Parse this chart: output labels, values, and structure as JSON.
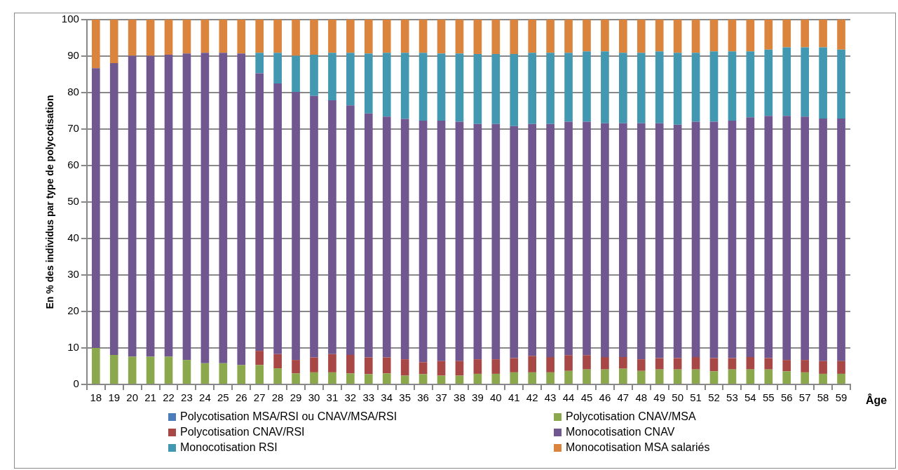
{
  "chart_data": {
    "type": "bar",
    "stacked": true,
    "xlabel": "Âge",
    "ylabel": "En % des individus par type de polycotisation",
    "categories": [
      "18",
      "19",
      "20",
      "21",
      "22",
      "23",
      "24",
      "25",
      "26",
      "27",
      "28",
      "29",
      "30",
      "31",
      "32",
      "33",
      "34",
      "35",
      "36",
      "37",
      "38",
      "39",
      "40",
      "41",
      "42",
      "43",
      "44",
      "45",
      "46",
      "47",
      "48",
      "49",
      "50",
      "51",
      "52",
      "53",
      "54",
      "55",
      "56",
      "57",
      "58",
      "59"
    ],
    "series": [
      {
        "name": "Polycotisation MSA/RSI ou CNAV/MSA/RSI",
        "color": "#4a7ebb",
        "values": [
          0,
          0,
          0,
          0,
          0,
          0,
          0,
          0,
          0,
          0,
          0,
          0,
          0,
          0,
          0,
          0,
          0,
          0,
          0,
          0,
          0,
          0,
          0,
          0,
          0,
          0,
          0,
          0,
          0,
          0,
          0,
          0,
          0,
          0,
          0,
          0,
          0,
          0,
          0,
          0,
          0,
          0
        ]
      },
      {
        "name": "Polycotisation CNAV/MSA",
        "color": "#8ca84c",
        "values": [
          10.0,
          8.1,
          7.6,
          7.6,
          7.6,
          6.7,
          5.8,
          5.8,
          5.3,
          5.3,
          4.4,
          3.0,
          3.3,
          3.3,
          3.0,
          2.8,
          3.0,
          2.4,
          2.8,
          2.4,
          2.4,
          2.9,
          2.9,
          3.3,
          3.3,
          3.3,
          3.7,
          4.1,
          4.1,
          4.3,
          3.7,
          4.1,
          4.1,
          4.1,
          3.6,
          4.1,
          4.1,
          4.1,
          3.6,
          3.3,
          2.9,
          2.9
        ]
      },
      {
        "name": "Polycotisation CNAV/RSI",
        "color": "#a84846",
        "values": [
          0,
          0,
          0,
          0,
          0,
          0,
          0,
          0,
          0,
          3.9,
          3.9,
          3.7,
          4.1,
          5.0,
          5.1,
          4.6,
          4.4,
          4.5,
          3.3,
          4.0,
          4.0,
          4.0,
          4.0,
          3.9,
          4.5,
          4.2,
          4.3,
          3.9,
          3.4,
          3.2,
          3.2,
          3.1,
          3.1,
          3.4,
          3.6,
          3.1,
          3.4,
          3.1,
          3.1,
          3.4,
          3.5,
          3.5
        ]
      },
      {
        "name": "Monocotisation CNAV",
        "color": "#70578f",
        "values": [
          76.7,
          80.0,
          82.5,
          82.5,
          82.8,
          84.0,
          85.1,
          85.1,
          85.4,
          76.1,
          74.2,
          73.5,
          71.7,
          69.6,
          68.4,
          66.9,
          66.0,
          65.9,
          66.2,
          65.9,
          65.6,
          64.5,
          64.5,
          63.6,
          63.6,
          63.9,
          64.0,
          64.0,
          64.1,
          64.1,
          64.7,
          64.4,
          64.0,
          64.5,
          64.8,
          65.1,
          65.7,
          66.4,
          66.9,
          66.7,
          66.5,
          66.5
        ]
      },
      {
        "name": "Monocotisation RSI",
        "color": "#4298b0",
        "values": [
          0,
          0,
          0,
          0,
          0,
          0,
          0,
          0,
          0,
          5.6,
          8.4,
          9.9,
          11.3,
          13.0,
          14.4,
          16.4,
          17.5,
          18.1,
          18.6,
          18.4,
          18.7,
          19.2,
          19.2,
          19.8,
          19.5,
          19.5,
          18.9,
          19.3,
          19.7,
          19.3,
          19.3,
          19.7,
          19.7,
          18.9,
          19.3,
          19.0,
          18.1,
          18.2,
          18.8,
          19.0,
          19.5,
          18.9
        ]
      },
      {
        "name": "Monocotisation MSA salariés",
        "color": "#db843d",
        "values": [
          13.3,
          11.9,
          9.9,
          9.9,
          9.6,
          9.3,
          9.1,
          9.1,
          9.3,
          9.1,
          9.1,
          9.9,
          9.6,
          9.1,
          9.1,
          9.3,
          9.1,
          9.1,
          9.1,
          9.3,
          9.3,
          9.4,
          9.4,
          9.4,
          9.1,
          9.1,
          9.1,
          8.7,
          8.7,
          9.1,
          9.1,
          8.7,
          9.1,
          9.1,
          8.7,
          8.7,
          8.7,
          8.2,
          7.6,
          7.6,
          7.6,
          8.2
        ]
      }
    ],
    "ylim": [
      0,
      100
    ],
    "yticks": [
      0,
      10,
      20,
      30,
      40,
      50,
      60,
      70,
      80,
      90,
      100
    ],
    "grid": "y",
    "legend": "bottom"
  }
}
